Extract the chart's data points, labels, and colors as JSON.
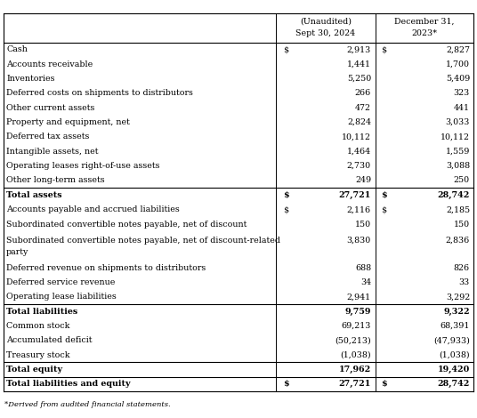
{
  "header_col2_line1": "(Unaudited)",
  "header_col2_line2": "Sept 30, 2024",
  "header_col3_line1": "December 31,",
  "header_col3_line2": "2023*",
  "footnote": "*Derived from audited financial statements.",
  "rows": [
    {
      "label": "Cash",
      "val1": "2,913",
      "val2": "2,827",
      "bold": false,
      "has_dollar1": true,
      "has_dollar2": true,
      "section_top": false,
      "multiline": false
    },
    {
      "label": "Accounts receivable",
      "val1": "1,441",
      "val2": "1,700",
      "bold": false,
      "has_dollar1": false,
      "has_dollar2": false,
      "section_top": false,
      "multiline": false
    },
    {
      "label": "Inventories",
      "val1": "5,250",
      "val2": "5,409",
      "bold": false,
      "has_dollar1": false,
      "has_dollar2": false,
      "section_top": false,
      "multiline": false
    },
    {
      "label": "Deferred costs on shipments to distributors",
      "val1": "266",
      "val2": "323",
      "bold": false,
      "has_dollar1": false,
      "has_dollar2": false,
      "section_top": false,
      "multiline": false
    },
    {
      "label": "Other current assets",
      "val1": "472",
      "val2": "441",
      "bold": false,
      "has_dollar1": false,
      "has_dollar2": false,
      "section_top": false,
      "multiline": false
    },
    {
      "label": "Property and equipment, net",
      "val1": "2,824",
      "val2": "3,033",
      "bold": false,
      "has_dollar1": false,
      "has_dollar2": false,
      "section_top": false,
      "multiline": false
    },
    {
      "label": "Deferred tax assets",
      "val1": "10,112",
      "val2": "10,112",
      "bold": false,
      "has_dollar1": false,
      "has_dollar2": false,
      "section_top": false,
      "multiline": false
    },
    {
      "label": "Intangible assets, net",
      "val1": "1,464",
      "val2": "1,559",
      "bold": false,
      "has_dollar1": false,
      "has_dollar2": false,
      "section_top": false,
      "multiline": false
    },
    {
      "label": "Operating leases right-of-use assets",
      "val1": "2,730",
      "val2": "3,088",
      "bold": false,
      "has_dollar1": false,
      "has_dollar2": false,
      "section_top": false,
      "multiline": false
    },
    {
      "label": "Other long-term assets",
      "val1": "249",
      "val2": "250",
      "bold": false,
      "has_dollar1": false,
      "has_dollar2": false,
      "section_top": false,
      "multiline": false
    },
    {
      "label": "Total assets",
      "val1": "27,721",
      "val2": "28,742",
      "bold": true,
      "has_dollar1": true,
      "has_dollar2": true,
      "section_top": true,
      "multiline": false
    },
    {
      "label": "Accounts payable and accrued liabilities",
      "val1": "2,116",
      "val2": "2,185",
      "bold": false,
      "has_dollar1": true,
      "has_dollar2": true,
      "section_top": false,
      "multiline": false
    },
    {
      "label": "Subordinated convertible notes payable, net of discount",
      "val1": "150",
      "val2": "150",
      "bold": false,
      "has_dollar1": false,
      "has_dollar2": false,
      "section_top": false,
      "multiline": false
    },
    {
      "label": "Subordinated convertible notes payable, net of discount-related",
      "val1": "3,830",
      "val2": "2,836",
      "bold": false,
      "has_dollar1": false,
      "has_dollar2": false,
      "section_top": false,
      "multiline": true,
      "label2": "party"
    },
    {
      "label": "Deferred revenue on shipments to distributors",
      "val1": "688",
      "val2": "826",
      "bold": false,
      "has_dollar1": false,
      "has_dollar2": false,
      "section_top": false,
      "multiline": false
    },
    {
      "label": "Deferred service revenue",
      "val1": "34",
      "val2": "33",
      "bold": false,
      "has_dollar1": false,
      "has_dollar2": false,
      "section_top": false,
      "multiline": false
    },
    {
      "label": "Operating lease liabilities",
      "val1": "2,941",
      "val2": "3,292",
      "bold": false,
      "has_dollar1": false,
      "has_dollar2": false,
      "section_top": false,
      "multiline": false
    },
    {
      "label": "Total liabilities",
      "val1": "9,759",
      "val2": "9,322",
      "bold": true,
      "has_dollar1": false,
      "has_dollar2": false,
      "section_top": true,
      "multiline": false
    },
    {
      "label": "Common stock",
      "val1": "69,213",
      "val2": "68,391",
      "bold": false,
      "has_dollar1": false,
      "has_dollar2": false,
      "section_top": false,
      "multiline": false
    },
    {
      "label": "Accumulated deficit",
      "val1": "(50,213)",
      "val2": "(47,933)",
      "bold": false,
      "has_dollar1": false,
      "has_dollar2": false,
      "section_top": false,
      "multiline": false
    },
    {
      "label": "Treasury stock",
      "val1": "(1,038)",
      "val2": "(1,038)",
      "bold": false,
      "has_dollar1": false,
      "has_dollar2": false,
      "section_top": false,
      "multiline": false
    },
    {
      "label": "Total equity",
      "val1": "17,962",
      "val2": "19,420",
      "bold": true,
      "has_dollar1": false,
      "has_dollar2": false,
      "section_top": true,
      "multiline": false
    },
    {
      "label": "Total liabilities and equity",
      "val1": "27,721",
      "val2": "28,742",
      "bold": true,
      "has_dollar1": true,
      "has_dollar2": true,
      "section_top": true,
      "multiline": false
    }
  ],
  "bg_color": "#ffffff",
  "line_color": "#000000",
  "text_color": "#000000"
}
